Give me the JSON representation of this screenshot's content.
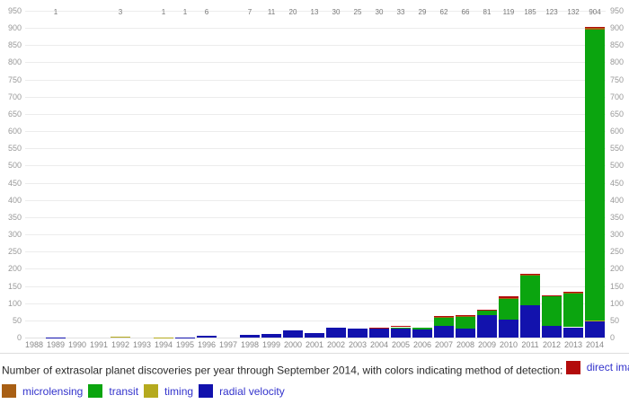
{
  "chart_data": {
    "type": "bar",
    "stacked": true,
    "title": "",
    "xlabel": "",
    "ylabel": "",
    "ylim": [
      0,
      950
    ],
    "ytick_step": 50,
    "grid": true,
    "legend_position": "bottom-caption",
    "categories": [
      "1988",
      "1989",
      "1990",
      "1991",
      "1992",
      "1993",
      "1994",
      "1995",
      "1996",
      "1997",
      "1998",
      "1999",
      "2000",
      "2001",
      "2002",
      "2003",
      "2004",
      "2005",
      "2006",
      "2007",
      "2008",
      "2009",
      "2010",
      "2011",
      "2012",
      "2013",
      "2014"
    ],
    "totals_labels": [
      "",
      "1",
      "",
      "",
      "3",
      "",
      "1",
      "1",
      "6",
      "",
      "7",
      "11",
      "20",
      "13",
      "30",
      "25",
      "30",
      "33",
      "29",
      "62",
      "66",
      "81",
      "119",
      "185",
      "123",
      "132",
      "904"
    ],
    "series": [
      {
        "name": "radial velocity",
        "color": "#1212ad",
        "values": [
          0,
          1,
          0,
          0,
          0,
          0,
          0,
          1,
          6,
          0,
          7,
          11,
          20,
          13,
          30,
          25,
          25,
          26,
          24,
          33,
          25,
          66,
          52,
          94,
          35,
          30,
          48
        ]
      },
      {
        "name": "timing",
        "color": "#b5aa1e",
        "values": [
          0,
          0,
          0,
          0,
          3,
          0,
          1,
          0,
          0,
          0,
          0,
          0,
          0,
          0,
          0,
          0,
          0,
          0,
          0,
          0,
          0,
          0,
          0,
          0,
          0,
          0,
          1
        ]
      },
      {
        "name": "transit",
        "color": "#0ba50f",
        "values": [
          0,
          0,
          0,
          0,
          0,
          0,
          0,
          0,
          0,
          0,
          0,
          0,
          0,
          0,
          0,
          0,
          4,
          4,
          5,
          27,
          35,
          13,
          62,
          86,
          84,
          97,
          845
        ]
      },
      {
        "name": "microlensing",
        "color": "#a85f14",
        "values": [
          0,
          0,
          0,
          0,
          0,
          0,
          0,
          0,
          0,
          0,
          0,
          0,
          0,
          0,
          0,
          0,
          0,
          0,
          0,
          1,
          4,
          1,
          2,
          4,
          3,
          3,
          8
        ]
      },
      {
        "name": "direct imaging",
        "color": "#b30b0b",
        "values": [
          0,
          0,
          0,
          0,
          0,
          0,
          0,
          0,
          0,
          0,
          0,
          0,
          0,
          0,
          0,
          0,
          1,
          3,
          0,
          1,
          2,
          1,
          3,
          1,
          1,
          2,
          2
        ]
      }
    ]
  },
  "caption": {
    "text": "Number of extrasolar planet discoveries per year through September 2014, with colors indicating method of detection:"
  },
  "legend": {
    "items": [
      {
        "label": "direct imaging",
        "color": "#b30b0b"
      },
      {
        "label": "microlensing",
        "color": "#a85f14"
      },
      {
        "label": "transit",
        "color": "#0ba50f"
      },
      {
        "label": "timing",
        "color": "#b5aa1e"
      },
      {
        "label": "radial velocity",
        "color": "#1212ad"
      }
    ]
  }
}
